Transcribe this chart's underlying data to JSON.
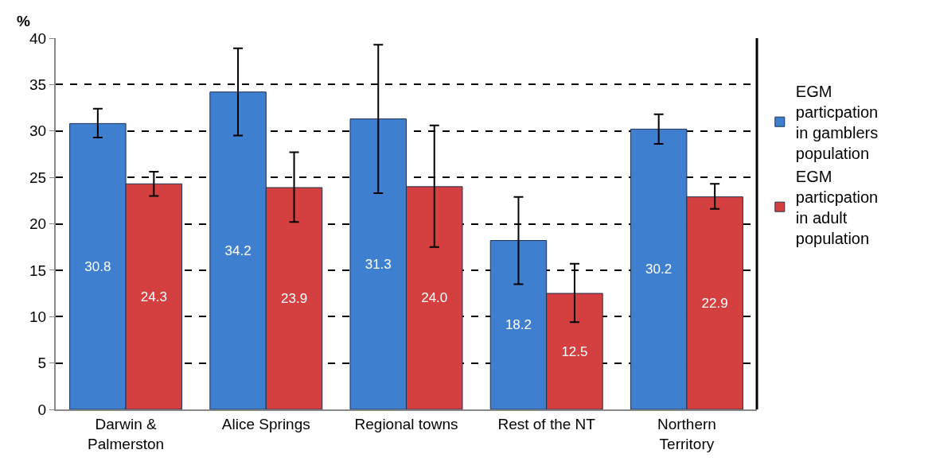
{
  "chart_data": {
    "type": "bar",
    "ylabel": "%",
    "categories": [
      "Darwin & Palmerston",
      "Alice Springs",
      "Regional towns",
      "Rest of the NT",
      "Northern Territory"
    ],
    "series": [
      {
        "name": "EGM particpation in gamblers population",
        "color": "#3f7fcf",
        "values": [
          30.8,
          34.2,
          31.3,
          18.2,
          30.2
        ],
        "value_labels": [
          "30.8",
          "34.2",
          "31.3",
          "18.2",
          "30.2"
        ],
        "errors": [
          [
            29.3,
            32.4
          ],
          [
            29.5,
            38.9
          ],
          [
            23.3,
            39.3
          ],
          [
            13.5,
            22.9
          ],
          [
            28.6,
            31.8
          ]
        ]
      },
      {
        "name": "EGM particpation in adult population",
        "color": "#d43f3f",
        "values": [
          24.3,
          23.9,
          24.0,
          12.5,
          22.9
        ],
        "value_labels": [
          "24.3",
          "23.9",
          "24.0",
          "12.5",
          "22.9"
        ],
        "errors": [
          [
            23.0,
            25.6
          ],
          [
            20.2,
            27.7
          ],
          [
            17.5,
            30.6
          ],
          [
            9.4,
            15.7
          ],
          [
            21.6,
            24.3
          ]
        ]
      }
    ],
    "ylim": [
      0,
      40
    ],
    "yticks": [
      0,
      5,
      10,
      15,
      20,
      25,
      30,
      35,
      40
    ],
    "grid": "y",
    "legend": "right"
  }
}
